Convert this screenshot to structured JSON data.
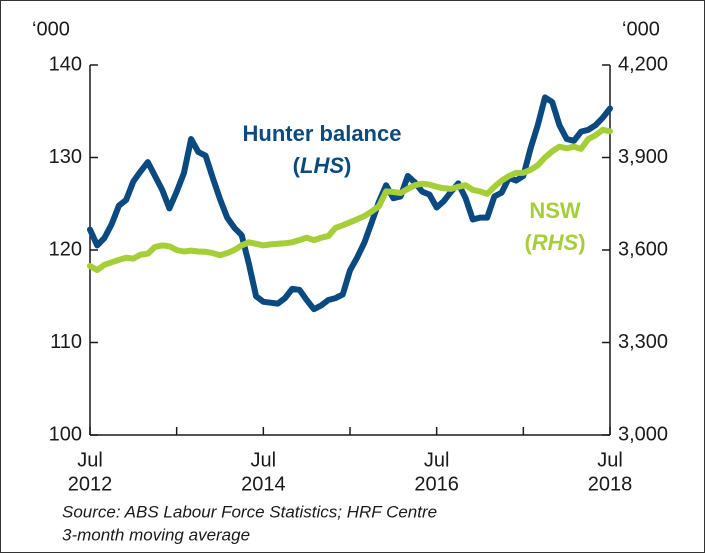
{
  "chart_data": {
    "type": "line",
    "y_unit_label": "‘000",
    "y2_unit_label": "‘000",
    "xlim": [
      "2012-07",
      "2018-07"
    ],
    "xticks": [
      "2012-07",
      "2013-07",
      "2014-07",
      "2015-07",
      "2016-07",
      "2017-07",
      "2018-07"
    ],
    "xtick_labels": [
      {
        "value": "2012-07",
        "label": [
          "Jul",
          "2012"
        ]
      },
      {
        "value": "2014-07",
        "label": [
          "Jul",
          "2014"
        ]
      },
      {
        "value": "2016-07",
        "label": [
          "Jul",
          "2016"
        ]
      },
      {
        "value": "2018-07",
        "label": [
          "Jul",
          "2018"
        ]
      }
    ],
    "ylim": [
      100,
      140
    ],
    "yticks": [
      100,
      110,
      120,
      130,
      140
    ],
    "y2lim": [
      3000,
      4200
    ],
    "y2ticks": [
      {
        "value": 3000,
        "label": "3,000"
      },
      {
        "value": 3300,
        "label": "3,300"
      },
      {
        "value": 3600,
        "label": "3,600"
      },
      {
        "value": 3900,
        "label": "3,900"
      },
      {
        "value": 4200,
        "label": "4,200"
      }
    ],
    "x": [
      "2012-07",
      "2012-08",
      "2012-09",
      "2012-10",
      "2012-11",
      "2012-12",
      "2013-01",
      "2013-02",
      "2013-03",
      "2013-04",
      "2013-05",
      "2013-06",
      "2013-07",
      "2013-08",
      "2013-09",
      "2013-10",
      "2013-11",
      "2013-12",
      "2014-01",
      "2014-02",
      "2014-03",
      "2014-04",
      "2014-05",
      "2014-06",
      "2014-07",
      "2014-08",
      "2014-09",
      "2014-10",
      "2014-11",
      "2014-12",
      "2015-01",
      "2015-02",
      "2015-03",
      "2015-04",
      "2015-05",
      "2015-06",
      "2015-07",
      "2015-08",
      "2015-09",
      "2015-10",
      "2015-11",
      "2015-12",
      "2016-01",
      "2016-02",
      "2016-03",
      "2016-04",
      "2016-05",
      "2016-06",
      "2016-07",
      "2016-08",
      "2016-09",
      "2016-10",
      "2016-11",
      "2016-12",
      "2017-01",
      "2017-02",
      "2017-03",
      "2017-04",
      "2017-05",
      "2017-06",
      "2017-07",
      "2017-08",
      "2017-09",
      "2017-10",
      "2017-11",
      "2017-12",
      "2018-01",
      "2018-02",
      "2018-03",
      "2018-04",
      "2018-05",
      "2018-06",
      "2018-07"
    ],
    "series": [
      {
        "name": "Hunter balance",
        "color": "#0b4a80",
        "axis": "y",
        "values": [
          122.2,
          120.5,
          121.3,
          122.8,
          124.8,
          125.4,
          127.4,
          128.5,
          129.5,
          128.0,
          126.5,
          124.5,
          126.3,
          128.3,
          132.0,
          130.6,
          130.2,
          127.8,
          125.5,
          123.5,
          122.4,
          121.6,
          118.5,
          115.0,
          114.4,
          114.3,
          114.2,
          114.8,
          115.8,
          115.7,
          114.6,
          113.6,
          114.0,
          114.6,
          114.8,
          115.2,
          117.8,
          119.2,
          120.8,
          123.0,
          125.2,
          127.0,
          125.6,
          125.8,
          128.0,
          127.3,
          126.3,
          126.0,
          124.6,
          125.3,
          126.3,
          127.2,
          125.6,
          123.3,
          123.5,
          123.5,
          125.8,
          126.2,
          127.8,
          127.5,
          128.0,
          131.0,
          133.5,
          136.5,
          136.0,
          133.5,
          132.0,
          131.8,
          132.8,
          133.0,
          133.5,
          134.3,
          135.3
        ]
      },
      {
        "name": "NSW",
        "color": "#a6ce39",
        "axis": "y2",
        "values": [
          3548,
          3535,
          3552,
          3560,
          3568,
          3575,
          3572,
          3585,
          3588,
          3610,
          3615,
          3612,
          3600,
          3595,
          3598,
          3595,
          3594,
          3590,
          3583,
          3590,
          3600,
          3615,
          3625,
          3620,
          3615,
          3618,
          3620,
          3622,
          3625,
          3632,
          3640,
          3632,
          3640,
          3645,
          3672,
          3680,
          3690,
          3700,
          3710,
          3725,
          3742,
          3790,
          3788,
          3785,
          3798,
          3810,
          3815,
          3812,
          3805,
          3800,
          3798,
          3805,
          3810,
          3795,
          3790,
          3782,
          3805,
          3825,
          3840,
          3850,
          3850,
          3860,
          3875,
          3900,
          3920,
          3935,
          3930,
          3935,
          3928,
          3960,
          3972,
          3990,
          3985
        ]
      }
    ],
    "annotations": [
      {
        "series": 0,
        "lines": [
          [
            {
              "text": "Hunter balance"
            }
          ],
          [
            {
              "text": "("
            },
            {
              "text": "LHS",
              "italic": true
            },
            {
              "text": ")"
            }
          ]
        ]
      },
      {
        "series": 1,
        "lines": [
          [
            {
              "text": "NSW"
            }
          ],
          [
            {
              "text": "("
            },
            {
              "text": "RHS",
              "italic": true
            },
            {
              "text": ")"
            }
          ]
        ]
      }
    ],
    "notes": [
      "Source: ABS Labour Force Statistics; HRF Centre",
      "3-month moving average"
    ]
  }
}
